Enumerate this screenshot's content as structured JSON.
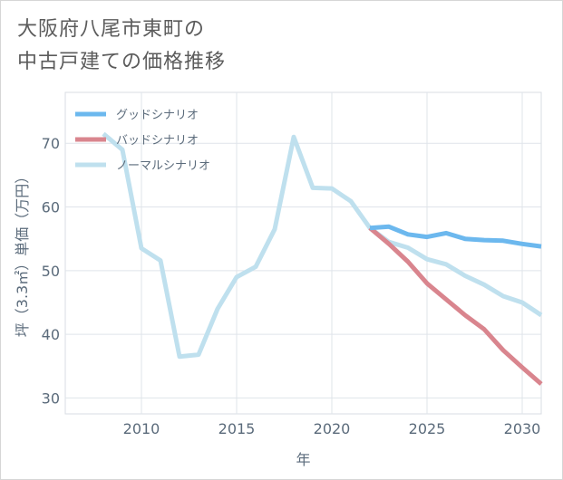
{
  "title": {
    "line1": "大阪府八尾市東町の",
    "line2": "中古戸建ての価格推移"
  },
  "chart_data": {
    "type": "line",
    "title": "大阪府八尾市東町の中古戸建ての価格推移",
    "xlabel": "年",
    "ylabel": "坪（3.3㎡）単価（万円）",
    "xlim": [
      2006,
      2031
    ],
    "ylim": [
      27.5,
      78
    ],
    "xticks": [
      2010,
      2015,
      2020,
      2025,
      2030
    ],
    "yticks": [
      30,
      40,
      50,
      60,
      70
    ],
    "grid": true,
    "legend_position": "top-left",
    "series": [
      {
        "name": "グッドシナリオ",
        "color": "#6cb8ee",
        "x": [
          2022,
          2023,
          2024,
          2025,
          2026,
          2027,
          2028,
          2029,
          2030,
          2031
        ],
        "values": [
          56.7,
          56.9,
          55.7,
          55.3,
          55.9,
          55.0,
          54.8,
          54.7,
          54.2,
          53.8
        ]
      },
      {
        "name": "バッドシナリオ",
        "color": "#d9858e",
        "x": [
          2022,
          2023,
          2024,
          2025,
          2026,
          2027,
          2028,
          2029,
          2030,
          2031
        ],
        "values": [
          56.7,
          54.2,
          51.4,
          48.0,
          45.5,
          43.0,
          40.8,
          37.5,
          34.8,
          32.2
        ]
      },
      {
        "name": "ノーマルシナリオ",
        "color": "#bfe0ee",
        "x": [
          2008,
          2009,
          2010,
          2011,
          2012,
          2013,
          2014,
          2015,
          2016,
          2017,
          2018,
          2019,
          2020,
          2021,
          2022,
          2023,
          2024,
          2025,
          2026,
          2027,
          2028,
          2029,
          2030,
          2031
        ],
        "values": [
          71.5,
          69.0,
          53.5,
          51.6,
          36.5,
          36.8,
          44.0,
          49.0,
          50.6,
          56.5,
          71.0,
          63.0,
          62.9,
          60.9,
          56.7,
          54.5,
          53.6,
          51.8,
          51.0,
          49.2,
          47.8,
          46.0,
          45.0,
          43.0
        ]
      }
    ]
  }
}
